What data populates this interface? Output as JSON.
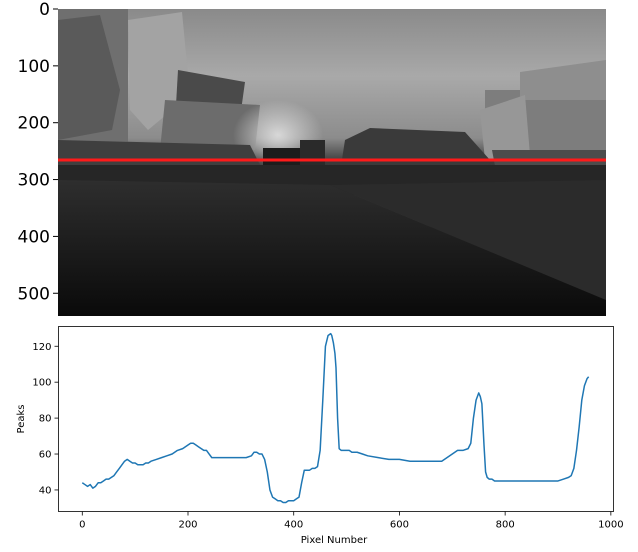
{
  "chart_data": [
    {
      "type": "image",
      "description_type": "depth map image",
      "y_ticks": [
        "0",
        "100",
        "200",
        "300",
        "400",
        "500"
      ],
      "y_range": [
        0,
        540
      ],
      "x_range": [
        0,
        960
      ],
      "highlight_row": 270,
      "highlight_color": "#ff0000"
    },
    {
      "type": "line",
      "xlabel": "Pixel Number",
      "ylabel": "Peaks",
      "xlim": [
        -45,
        1005
      ],
      "ylim": [
        28,
        131
      ],
      "x_ticks": [
        "0",
        "200",
        "400",
        "600",
        "800",
        "1000"
      ],
      "y_ticks": [
        "40",
        "60",
        "80",
        "100",
        "120"
      ],
      "grid": false,
      "line_color": "#1f77b4",
      "series": [
        {
          "x": [
            0,
            5,
            10,
            15,
            20,
            25,
            30,
            35,
            40,
            45,
            50,
            55,
            60,
            65,
            70,
            75,
            80,
            85,
            90,
            95,
            100,
            105,
            110,
            115,
            120,
            125,
            130,
            140,
            150,
            160,
            170,
            180,
            190,
            200,
            205,
            210,
            215,
            220,
            225,
            230,
            235,
            240,
            245,
            250,
            260,
            270,
            280,
            290,
            300,
            310,
            320,
            325,
            330,
            335,
            340,
            345,
            350,
            355,
            360,
            365,
            370,
            375,
            380,
            385,
            390,
            395,
            400,
            405,
            410,
            415,
            420,
            425,
            430,
            435,
            440,
            445,
            450,
            455,
            460,
            465,
            470,
            472,
            475,
            478,
            480,
            483,
            486,
            490,
            494,
            498,
            502,
            505,
            510,
            520,
            530,
            540,
            560,
            580,
            600,
            620,
            640,
            660,
            680,
            690,
            700,
            710,
            720,
            730,
            735,
            740,
            745,
            750,
            753,
            756,
            760,
            763,
            766,
            770,
            775,
            780,
            790,
            800,
            820,
            840,
            860,
            880,
            900,
            910,
            920,
            925,
            930,
            935,
            940,
            945,
            950,
            955,
            958
          ],
          "values": [
            44,
            43,
            42,
            43,
            41,
            42,
            44,
            44,
            45,
            46,
            46,
            47,
            48,
            50,
            52,
            54,
            56,
            57,
            56,
            55,
            55,
            54,
            54,
            54,
            55,
            55,
            56,
            57,
            58,
            59,
            60,
            62,
            63,
            65,
            66,
            66,
            65,
            64,
            63,
            62,
            62,
            60,
            58,
            58,
            58,
            58,
            58,
            58,
            58,
            58,
            59,
            61,
            61,
            60,
            60,
            57,
            50,
            40,
            36,
            35,
            34,
            34,
            33,
            33,
            34,
            34,
            34,
            35,
            36,
            44,
            51,
            51,
            51,
            52,
            52,
            53,
            62,
            90,
            120,
            126,
            127,
            126,
            122,
            116,
            108,
            80,
            63,
            62,
            62,
            62,
            62,
            62,
            61,
            61,
            60,
            59,
            58,
            57,
            57,
            56,
            56,
            56,
            56,
            58,
            60,
            62,
            62,
            63,
            66,
            80,
            90,
            94,
            92,
            88,
            65,
            50,
            47,
            46,
            46,
            45,
            45,
            45,
            45,
            45,
            45,
            45,
            45,
            46,
            47,
            48,
            52,
            62,
            75,
            90,
            98,
            102,
            103
          ]
        }
      ]
    }
  ]
}
